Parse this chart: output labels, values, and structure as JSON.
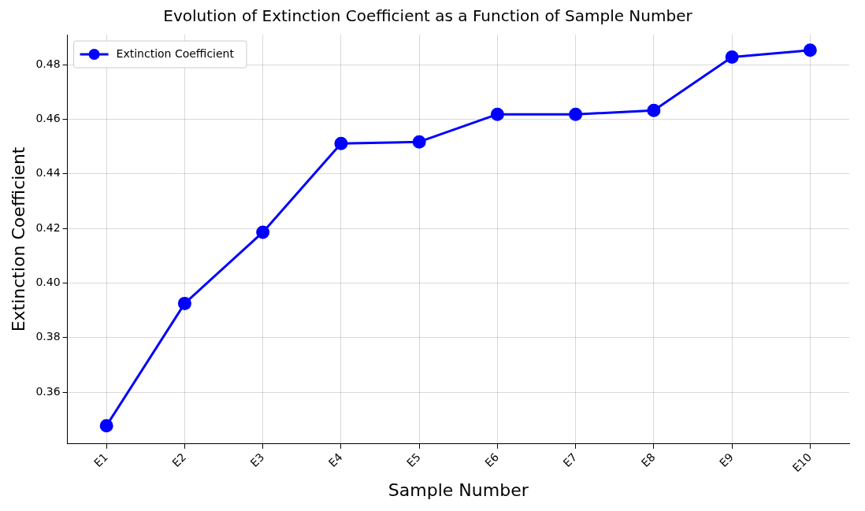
{
  "chart_data": {
    "type": "line",
    "title": "Evolution of Extinction Coefficient as a Function of Sample Number",
    "xlabel": "Sample Number",
    "ylabel": "Extinction Coefficient",
    "categories": [
      "E1",
      "E2",
      "E3",
      "E4",
      "E5",
      "E6",
      "E7",
      "E8",
      "E9",
      "E10"
    ],
    "series": [
      {
        "name": "Extinction Coefficient",
        "color": "#0000ff",
        "values": [
          0.3477,
          0.3925,
          0.4186,
          0.4511,
          0.4517,
          0.4618,
          0.4618,
          0.4632,
          0.4828,
          0.4853
        ]
      }
    ],
    "ylim": [
      0.341,
      0.491
    ],
    "yticks": [
      0.36,
      0.38,
      {
        "value": 0.4,
        "label": "0.40"
      },
      0.42,
      0.44,
      0.46,
      0.48
    ],
    "grid": true,
    "legend": "top left",
    "marker": "circle",
    "line_style": "solid"
  }
}
